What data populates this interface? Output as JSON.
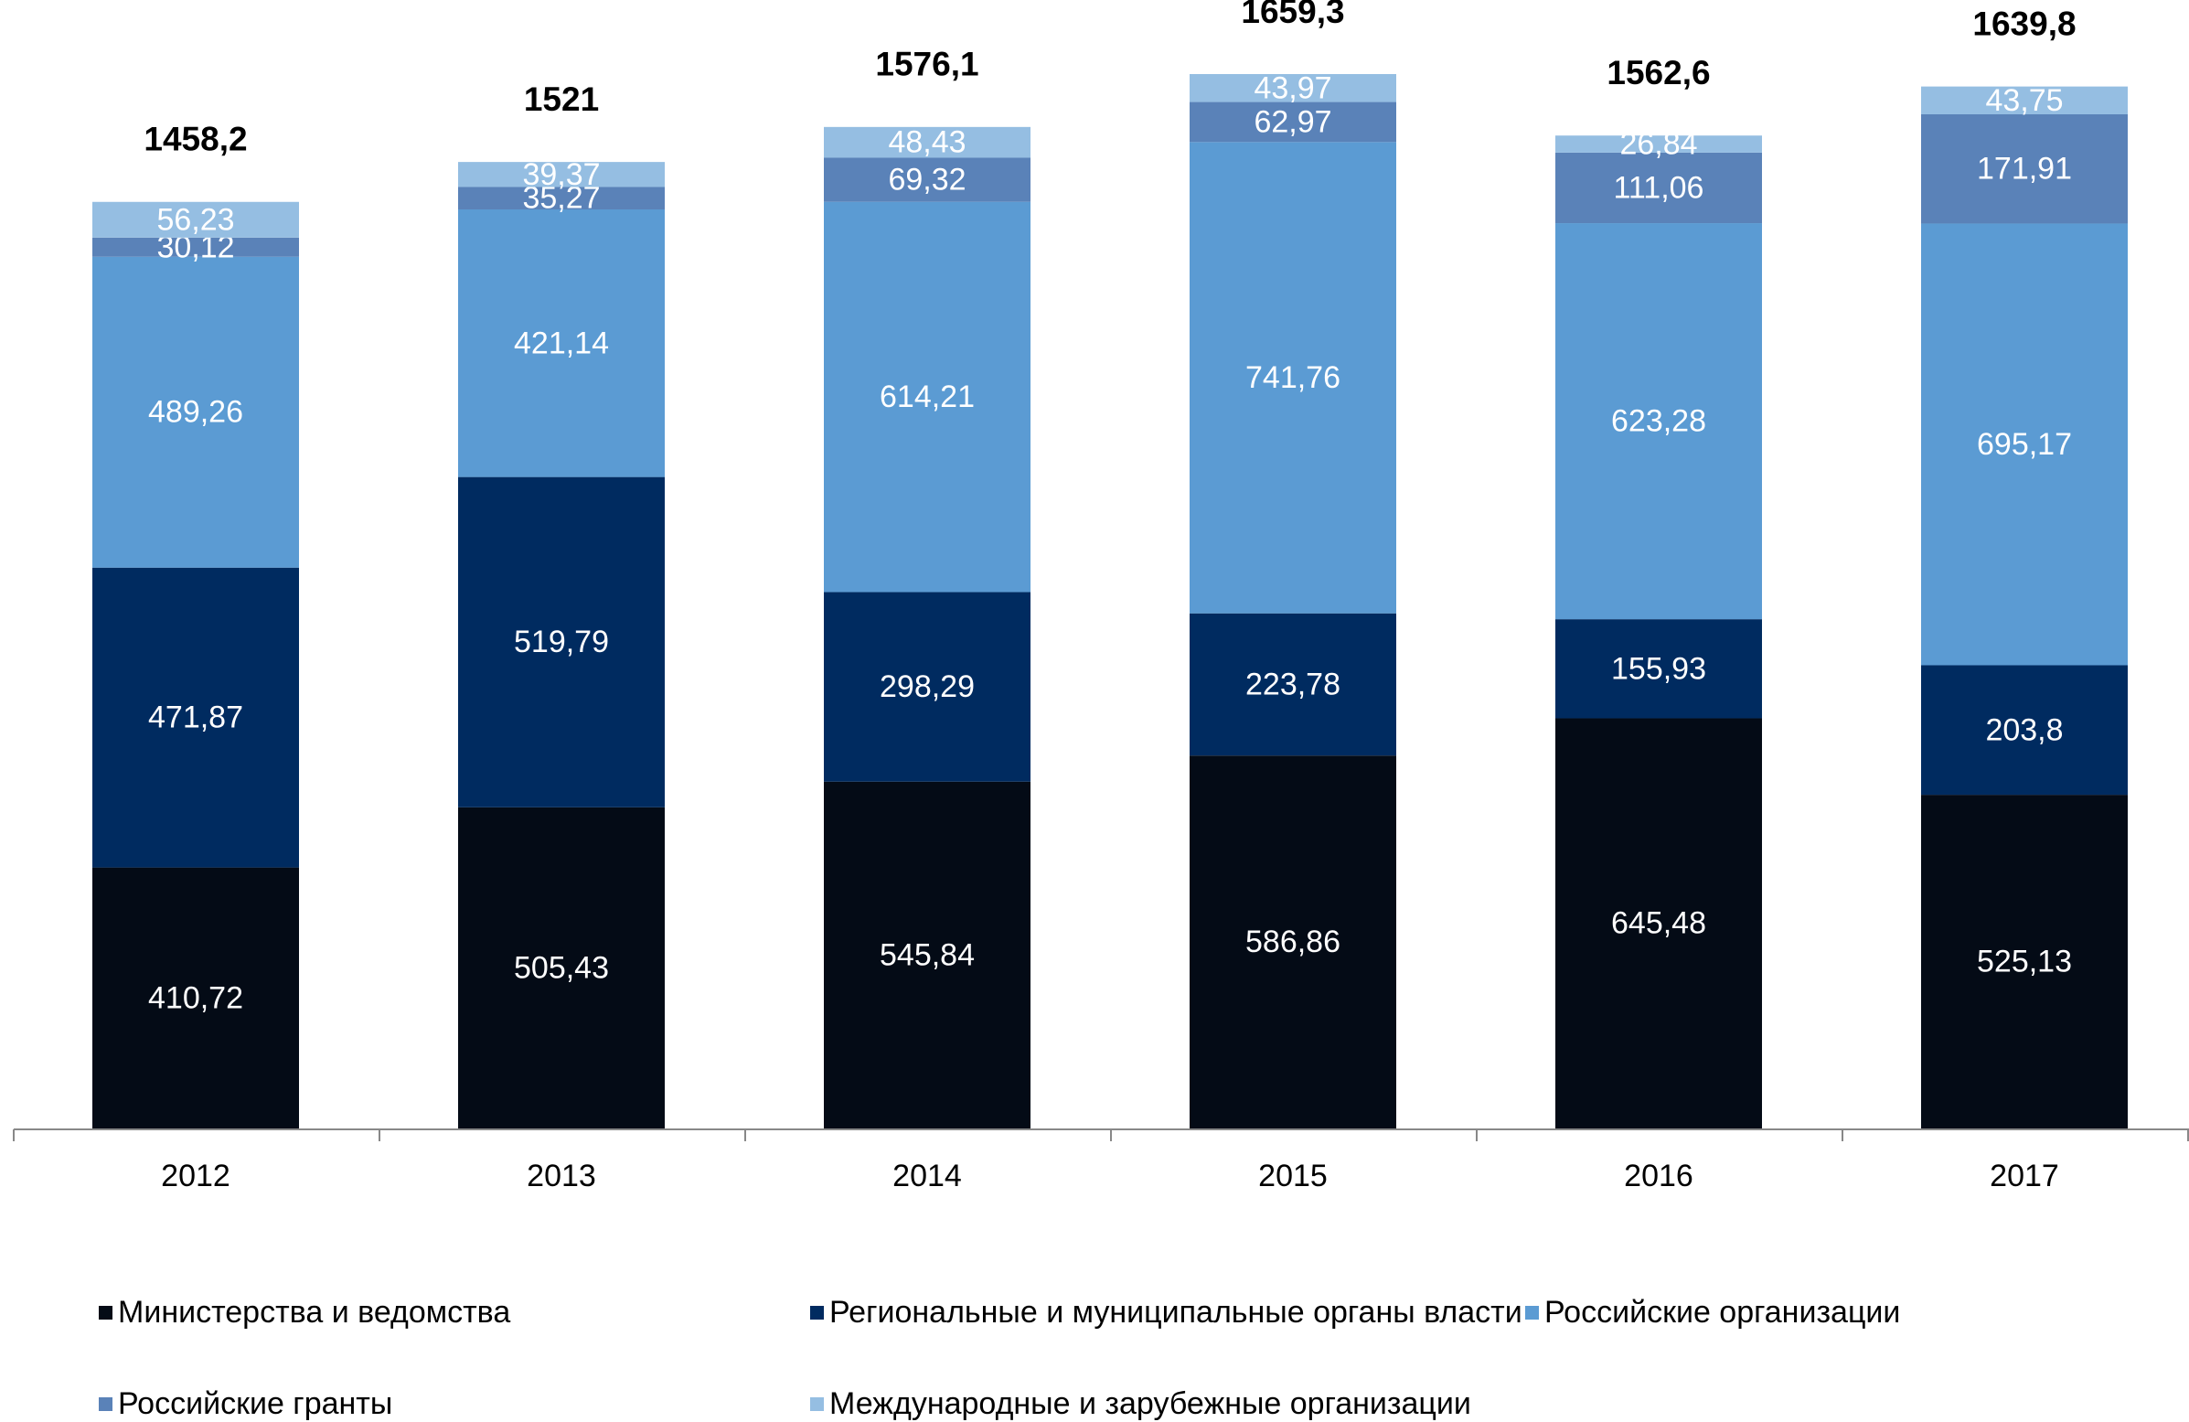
{
  "chart_data": {
    "type": "stacked_bar",
    "categories": [
      "2012",
      "2013",
      "2014",
      "2015",
      "2016",
      "2017"
    ],
    "series": [
      {
        "name": "Министерства и ведомства",
        "color": "#040b16",
        "values": [
          410.72,
          505.43,
          545.84,
          586.86,
          645.48,
          525.13
        ],
        "value_labels": [
          "410,72",
          "505,43",
          "545,84",
          "586,86",
          "645,48",
          "525,13"
        ]
      },
      {
        "name": "Региональные и муниципальные органы власти",
        "color": "#002b60",
        "values": [
          471.87,
          519.79,
          298.29,
          223.78,
          155.93,
          203.8
        ],
        "value_labels": [
          "471,87",
          "519,79",
          "298,29",
          "223,78",
          "155,93",
          "203,8"
        ]
      },
      {
        "name": "Российские организации",
        "color": "#5b9bd3",
        "values": [
          489.26,
          421.14,
          614.21,
          741.76,
          623.28,
          695.17
        ],
        "value_labels": [
          "489,26",
          "421,14",
          "614,21",
          "741,76",
          "623,28",
          "695,17"
        ]
      },
      {
        "name": "Российские гранты",
        "color": "#5a82b8",
        "values": [
          30.12,
          35.27,
          69.32,
          62.97,
          111.06,
          171.91
        ],
        "value_labels": [
          "30,12",
          "35,27",
          "69,32",
          "62,97",
          "111,06",
          "171,91"
        ]
      },
      {
        "name": "Международные и зарубежные организации",
        "color": "#95bee2",
        "values": [
          56.23,
          39.37,
          48.43,
          43.97,
          26.84,
          43.75
        ],
        "value_labels": [
          "56,23",
          "39,37",
          "48,43",
          "43,97",
          "26,84",
          "43,75"
        ]
      }
    ],
    "totals": {
      "values": [
        1458.2,
        1521,
        1576.1,
        1659.3,
        1562.6,
        1639.8
      ],
      "value_labels": [
        "1458,2",
        "1521",
        "1576,1",
        "1659,3",
        "1562,6",
        "1639,8"
      ]
    }
  }
}
